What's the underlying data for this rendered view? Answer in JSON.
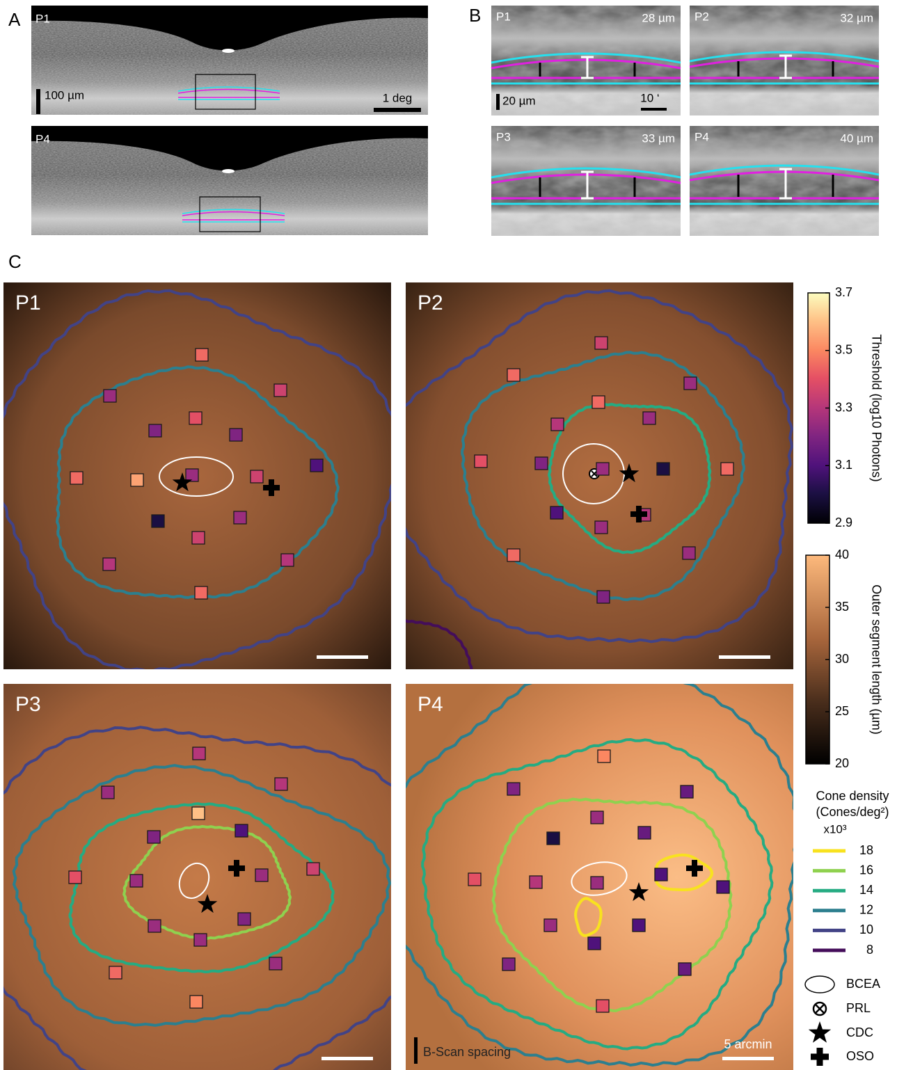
{
  "panel_labels": [
    "A",
    "B",
    "C"
  ],
  "panel_a": {
    "images": [
      {
        "label": "P1"
      },
      {
        "label": "P4"
      }
    ],
    "scale_vertical": "100 µm",
    "scale_horizontal": "1 deg"
  },
  "panel_b": {
    "images": [
      {
        "label": "P1",
        "thickness": "28 µm"
      },
      {
        "label": "P2",
        "thickness": "32 µm"
      },
      {
        "label": "P3",
        "thickness": "33 µm"
      },
      {
        "label": "P4",
        "thickness": "40 µm"
      }
    ],
    "scale_vertical": "20 µm",
    "scale_horizontal": "10 ‘"
  },
  "panel_c": {
    "maps": [
      {
        "label": "P1",
        "thresholds": [
          3.45,
          3.35,
          3.25,
          3.4,
          3.2,
          3.2,
          3.1,
          3.45,
          3.55,
          3.25,
          3.35,
          3.25,
          3.0,
          3.35,
          3.3,
          3.3,
          3.45
        ]
      },
      {
        "label": "P2",
        "thresholds": [
          3.35,
          3.45,
          3.25,
          3.45,
          3.3,
          3.25,
          3.4,
          3.2,
          3.25,
          3.0,
          3.45,
          3.1,
          3.3,
          3.25,
          3.45,
          3.25,
          3.2
        ]
      },
      {
        "label": "P3",
        "thresholds": [
          3.3,
          3.25,
          3.3,
          3.6,
          3.1,
          3.2,
          3.4,
          3.25,
          3.25,
          3.35,
          3.2,
          3.25,
          3.25,
          3.25,
          3.45,
          3.5
        ]
      },
      {
        "label": "P4",
        "thresholds": [
          3.5,
          3.2,
          3.15,
          3.25,
          3.0,
          3.15,
          3.4,
          3.3,
          3.25,
          3.1,
          3.1,
          3.25,
          3.1,
          3.1,
          3.2,
          3.15,
          3.4
        ]
      }
    ],
    "scale_bar": "5 arcmin",
    "bscan_label": "B-Scan spacing"
  },
  "threshold_colorbar": {
    "title": "Threshold (log10 Photons)",
    "lim": [
      2.9,
      3.7
    ],
    "ticks": [
      2.9,
      3.1,
      3.3,
      3.5,
      3.7
    ]
  },
  "os_colorbar": {
    "title": "Outer segment length (µm)",
    "lim": [
      20,
      40
    ],
    "ticks": [
      20,
      25,
      30,
      35,
      40
    ]
  },
  "cone_density_legend": {
    "title": "Cone density",
    "units": "(Cones/deg²)",
    "multiplier": "x10³",
    "levels": [
      {
        "value": 18,
        "color": "#f8e21f"
      },
      {
        "value": 16,
        "color": "#8fd14f"
      },
      {
        "value": 14,
        "color": "#25ab82"
      },
      {
        "value": 12,
        "color": "#2c7f8e"
      },
      {
        "value": 10,
        "color": "#424386"
      },
      {
        "value": 8,
        "color": "#440d5a"
      }
    ]
  },
  "symbols": [
    "BCEA",
    "PRL",
    "CDC",
    "OSO"
  ]
}
